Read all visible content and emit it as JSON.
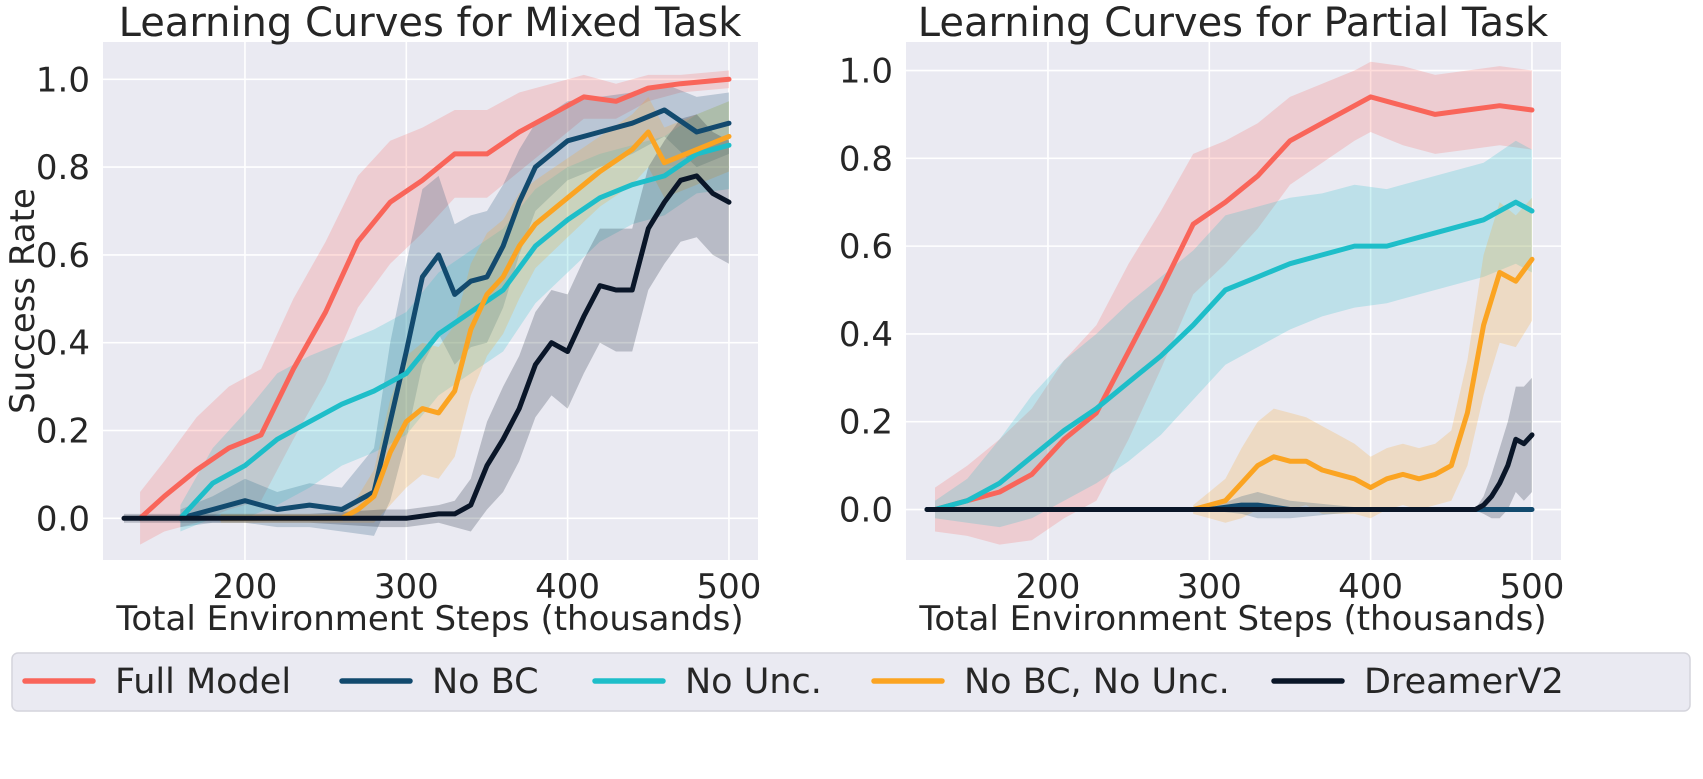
{
  "colors": {
    "full_model": "#F9655A",
    "no_bc": "#124A6E",
    "no_unc": "#1EBEC9",
    "no_bc_no_unc": "#FBA422",
    "dreamerv2": "#0A1628",
    "plot_bg": "#EAEAF2",
    "grid": "#FFFFFF"
  },
  "legend": {
    "items": [
      {
        "key": "full_model",
        "label": "Full Model"
      },
      {
        "key": "no_bc",
        "label": "No BC"
      },
      {
        "key": "no_unc",
        "label": "No Unc."
      },
      {
        "key": "no_bc_no_unc",
        "label": "No BC, No Unc."
      },
      {
        "key": "dreamerv2",
        "label": "DreamerV2"
      }
    ]
  },
  "chart_data": [
    {
      "type": "line",
      "title": "Learning Curves for Mixed Task",
      "xlabel": "Total Environment Steps (thousands)",
      "ylabel": "Success Rate",
      "xlim": [
        112,
        518
      ],
      "ylim": [
        -0.095,
        1.085
      ],
      "xticks": [
        "200",
        "300",
        "400",
        "500"
      ],
      "xtick_values": [
        200,
        300,
        400,
        500
      ],
      "yticks": [
        "0.0",
        "0.2",
        "0.4",
        "0.6",
        "0.8",
        "1.0"
      ],
      "ytick_values": [
        0.0,
        0.2,
        0.4,
        0.6,
        0.8,
        1.0
      ],
      "series": [
        {
          "key": "full_model",
          "name": "Full Model",
          "x": [
            135,
            150,
            170,
            190,
            210,
            230,
            250,
            270,
            290,
            310,
            330,
            350,
            370,
            390,
            410,
            430,
            450,
            470,
            500
          ],
          "y": [
            0.0,
            0.05,
            0.11,
            0.16,
            0.19,
            0.34,
            0.47,
            0.63,
            0.72,
            0.77,
            0.83,
            0.83,
            0.88,
            0.92,
            0.96,
            0.95,
            0.98,
            0.99,
            1.0
          ],
          "band": [
            0.06,
            0.08,
            0.12,
            0.14,
            0.15,
            0.16,
            0.16,
            0.15,
            0.14,
            0.12,
            0.1,
            0.1,
            0.09,
            0.07,
            0.05,
            0.04,
            0.03,
            0.02,
            0.02
          ]
        },
        {
          "key": "no_bc",
          "name": "No BC",
          "x": [
            160,
            180,
            200,
            220,
            240,
            260,
            280,
            290,
            300,
            310,
            320,
            330,
            340,
            350,
            360,
            370,
            380,
            400,
            420,
            440,
            460,
            480,
            500
          ],
          "y": [
            0.0,
            0.02,
            0.04,
            0.02,
            0.03,
            0.02,
            0.06,
            0.22,
            0.38,
            0.55,
            0.6,
            0.51,
            0.54,
            0.55,
            0.62,
            0.72,
            0.8,
            0.86,
            0.88,
            0.9,
            0.93,
            0.88,
            0.9
          ],
          "band": [
            0.02,
            0.03,
            0.05,
            0.04,
            0.05,
            0.05,
            0.1,
            0.18,
            0.2,
            0.2,
            0.18,
            0.16,
            0.15,
            0.15,
            0.14,
            0.12,
            0.1,
            0.09,
            0.08,
            0.07,
            0.06,
            0.08,
            0.07
          ]
        },
        {
          "key": "no_unc",
          "name": "No Unc.",
          "x": [
            160,
            180,
            200,
            220,
            240,
            260,
            280,
            300,
            320,
            340,
            360,
            380,
            400,
            420,
            440,
            460,
            480,
            500
          ],
          "y": [
            0.0,
            0.08,
            0.12,
            0.18,
            0.22,
            0.26,
            0.29,
            0.33,
            0.42,
            0.47,
            0.52,
            0.62,
            0.68,
            0.73,
            0.76,
            0.78,
            0.83,
            0.85
          ],
          "band": [
            0.03,
            0.08,
            0.12,
            0.15,
            0.15,
            0.14,
            0.14,
            0.14,
            0.14,
            0.14,
            0.14,
            0.13,
            0.12,
            0.1,
            0.09,
            0.09,
            0.09,
            0.1
          ]
        },
        {
          "key": "no_bc_no_unc",
          "name": "No BC, No Unc.",
          "x": [
            185,
            200,
            220,
            240,
            260,
            270,
            280,
            290,
            300,
            310,
            320,
            330,
            340,
            350,
            360,
            370,
            380,
            400,
            420,
            440,
            450,
            460,
            480,
            500
          ],
          "y": [
            0.0,
            0.0,
            0.0,
            0.0,
            0.0,
            0.02,
            0.05,
            0.15,
            0.22,
            0.25,
            0.24,
            0.29,
            0.43,
            0.51,
            0.55,
            0.62,
            0.67,
            0.73,
            0.79,
            0.84,
            0.88,
            0.81,
            0.84,
            0.87
          ],
          "band": [
            0.01,
            0.01,
            0.01,
            0.01,
            0.01,
            0.03,
            0.06,
            0.12,
            0.15,
            0.15,
            0.15,
            0.15,
            0.15,
            0.14,
            0.13,
            0.12,
            0.1,
            0.09,
            0.08,
            0.08,
            0.08,
            0.08,
            0.08,
            0.08
          ]
        },
        {
          "key": "dreamerv2",
          "name": "DreamerV2",
          "x": [
            125,
            180,
            240,
            285,
            300,
            320,
            330,
            340,
            350,
            360,
            370,
            380,
            390,
            400,
            410,
            420,
            430,
            440,
            450,
            460,
            470,
            480,
            490,
            500
          ],
          "y": [
            0.0,
            0.0,
            0.0,
            0.0,
            0.0,
            0.01,
            0.01,
            0.03,
            0.12,
            0.18,
            0.25,
            0.35,
            0.4,
            0.38,
            0.46,
            0.53,
            0.52,
            0.52,
            0.66,
            0.72,
            0.77,
            0.78,
            0.74,
            0.72
          ],
          "band": [
            0.01,
            0.01,
            0.01,
            0.02,
            0.02,
            0.02,
            0.03,
            0.06,
            0.1,
            0.12,
            0.12,
            0.12,
            0.12,
            0.13,
            0.13,
            0.13,
            0.14,
            0.14,
            0.14,
            0.14,
            0.14,
            0.14,
            0.14,
            0.14
          ]
        }
      ]
    },
    {
      "type": "line",
      "title": "Learning Curves for Partial Task",
      "xlabel": "Total Environment Steps (thousands)",
      "ylabel": "",
      "xlim": [
        112,
        518
      ],
      "ylim": [
        -0.115,
        1.065
      ],
      "xticks": [
        "200",
        "300",
        "400",
        "500"
      ],
      "xtick_values": [
        200,
        300,
        400,
        500
      ],
      "yticks": [
        "0.0",
        "0.2",
        "0.4",
        "0.6",
        "0.8",
        "1.0"
      ],
      "ytick_values": [
        0.0,
        0.2,
        0.4,
        0.6,
        0.8,
        1.0
      ],
      "series": [
        {
          "key": "full_model",
          "name": "Full Model",
          "x": [
            130,
            150,
            170,
            190,
            210,
            230,
            250,
            270,
            290,
            310,
            330,
            350,
            370,
            390,
            400,
            420,
            440,
            460,
            480,
            500
          ],
          "y": [
            0.0,
            0.02,
            0.04,
            0.08,
            0.16,
            0.22,
            0.36,
            0.5,
            0.65,
            0.7,
            0.76,
            0.84,
            0.88,
            0.92,
            0.94,
            0.92,
            0.9,
            0.91,
            0.92,
            0.91
          ],
          "band": [
            0.05,
            0.08,
            0.12,
            0.15,
            0.18,
            0.2,
            0.2,
            0.18,
            0.16,
            0.14,
            0.12,
            0.1,
            0.09,
            0.08,
            0.08,
            0.09,
            0.09,
            0.09,
            0.09,
            0.09
          ]
        },
        {
          "key": "no_unc",
          "name": "No Unc.",
          "x": [
            130,
            150,
            170,
            190,
            210,
            230,
            250,
            270,
            290,
            310,
            330,
            350,
            370,
            390,
            410,
            430,
            450,
            470,
            490,
            500
          ],
          "y": [
            0.0,
            0.02,
            0.06,
            0.12,
            0.18,
            0.23,
            0.29,
            0.35,
            0.42,
            0.5,
            0.53,
            0.56,
            0.58,
            0.6,
            0.6,
            0.62,
            0.64,
            0.66,
            0.7,
            0.68
          ],
          "band": [
            0.02,
            0.05,
            0.1,
            0.14,
            0.16,
            0.17,
            0.18,
            0.18,
            0.17,
            0.17,
            0.16,
            0.15,
            0.14,
            0.14,
            0.13,
            0.13,
            0.13,
            0.13,
            0.14,
            0.14
          ]
        },
        {
          "key": "no_bc_no_unc",
          "name": "No BC, No Unc.",
          "x": [
            290,
            300,
            310,
            320,
            330,
            340,
            350,
            360,
            370,
            380,
            390,
            400,
            410,
            420,
            430,
            440,
            450,
            460,
            470,
            480,
            490,
            500
          ],
          "y": [
            0.0,
            0.01,
            0.02,
            0.06,
            0.1,
            0.12,
            0.11,
            0.11,
            0.09,
            0.08,
            0.07,
            0.05,
            0.07,
            0.08,
            0.07,
            0.08,
            0.1,
            0.22,
            0.42,
            0.54,
            0.52,
            0.57
          ],
          "band": [
            0.01,
            0.03,
            0.05,
            0.08,
            0.1,
            0.11,
            0.11,
            0.1,
            0.1,
            0.09,
            0.08,
            0.07,
            0.07,
            0.07,
            0.07,
            0.07,
            0.08,
            0.12,
            0.16,
            0.16,
            0.15,
            0.14
          ]
        },
        {
          "key": "no_bc",
          "name": "No BC",
          "x": [
            125,
            200,
            300,
            320,
            330,
            350,
            400,
            450,
            500
          ],
          "y": [
            0.0,
            0.0,
            0.0,
            0.01,
            0.01,
            0.0,
            0.0,
            0.0,
            0.0
          ],
          "band": [
            0.002,
            0.002,
            0.002,
            0.02,
            0.03,
            0.02,
            0.002,
            0.002,
            0.002
          ]
        },
        {
          "key": "dreamerv2",
          "name": "DreamerV2",
          "x": [
            125,
            200,
            300,
            400,
            465,
            470,
            475,
            480,
            485,
            490,
            495,
            500
          ],
          "y": [
            0.0,
            0.0,
            0.0,
            0.0,
            0.0,
            0.01,
            0.03,
            0.06,
            0.1,
            0.16,
            0.15,
            0.17
          ],
          "band": [
            0.002,
            0.002,
            0.002,
            0.002,
            0.002,
            0.02,
            0.05,
            0.08,
            0.1,
            0.12,
            0.13,
            0.13
          ]
        }
      ]
    }
  ]
}
